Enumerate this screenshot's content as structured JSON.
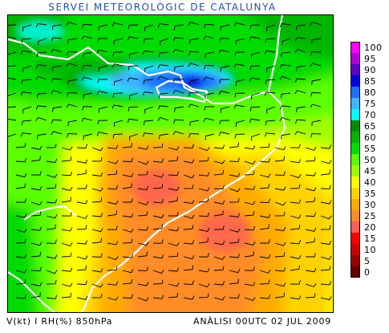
{
  "header": {
    "title": "SERVEI METEOROLÒGIC DE CATALUNYA"
  },
  "footer": {
    "variables": "V(kt) I RH(%) 850hPa",
    "analysis": "ANÀLISI 00UTC 02 JUL 2009"
  },
  "legend": {
    "items": [
      {
        "label": "100",
        "color": "#ff00ff"
      },
      {
        "label": "95",
        "color": "#b400d8"
      },
      {
        "label": "90",
        "color": "#5a00c8"
      },
      {
        "label": "85",
        "color": "#0000e0"
      },
      {
        "label": "80",
        "color": "#1e6eff"
      },
      {
        "label": "75",
        "color": "#3cb4ff"
      },
      {
        "label": "70",
        "color": "#00ffff"
      },
      {
        "label": "65",
        "color": "#008c00"
      },
      {
        "label": "60",
        "color": "#00b400"
      },
      {
        "label": "55",
        "color": "#00dc00"
      },
      {
        "label": "50",
        "color": "#5aff00"
      },
      {
        "label": "45",
        "color": "#a0ff00"
      },
      {
        "label": "40",
        "color": "#ffff00"
      },
      {
        "label": "35",
        "color": "#ffd200"
      },
      {
        "label": "30",
        "color": "#ffaa00"
      },
      {
        "label": "25",
        "color": "#ff8c28"
      },
      {
        "label": "20",
        "color": "#ff5a5a"
      },
      {
        "label": "15",
        "color": "#ff0000"
      },
      {
        "label": "10",
        "color": "#c80000"
      },
      {
        "label": "5",
        "color": "#960000"
      },
      {
        "label": "0",
        "color": "#640000"
      }
    ]
  }
}
